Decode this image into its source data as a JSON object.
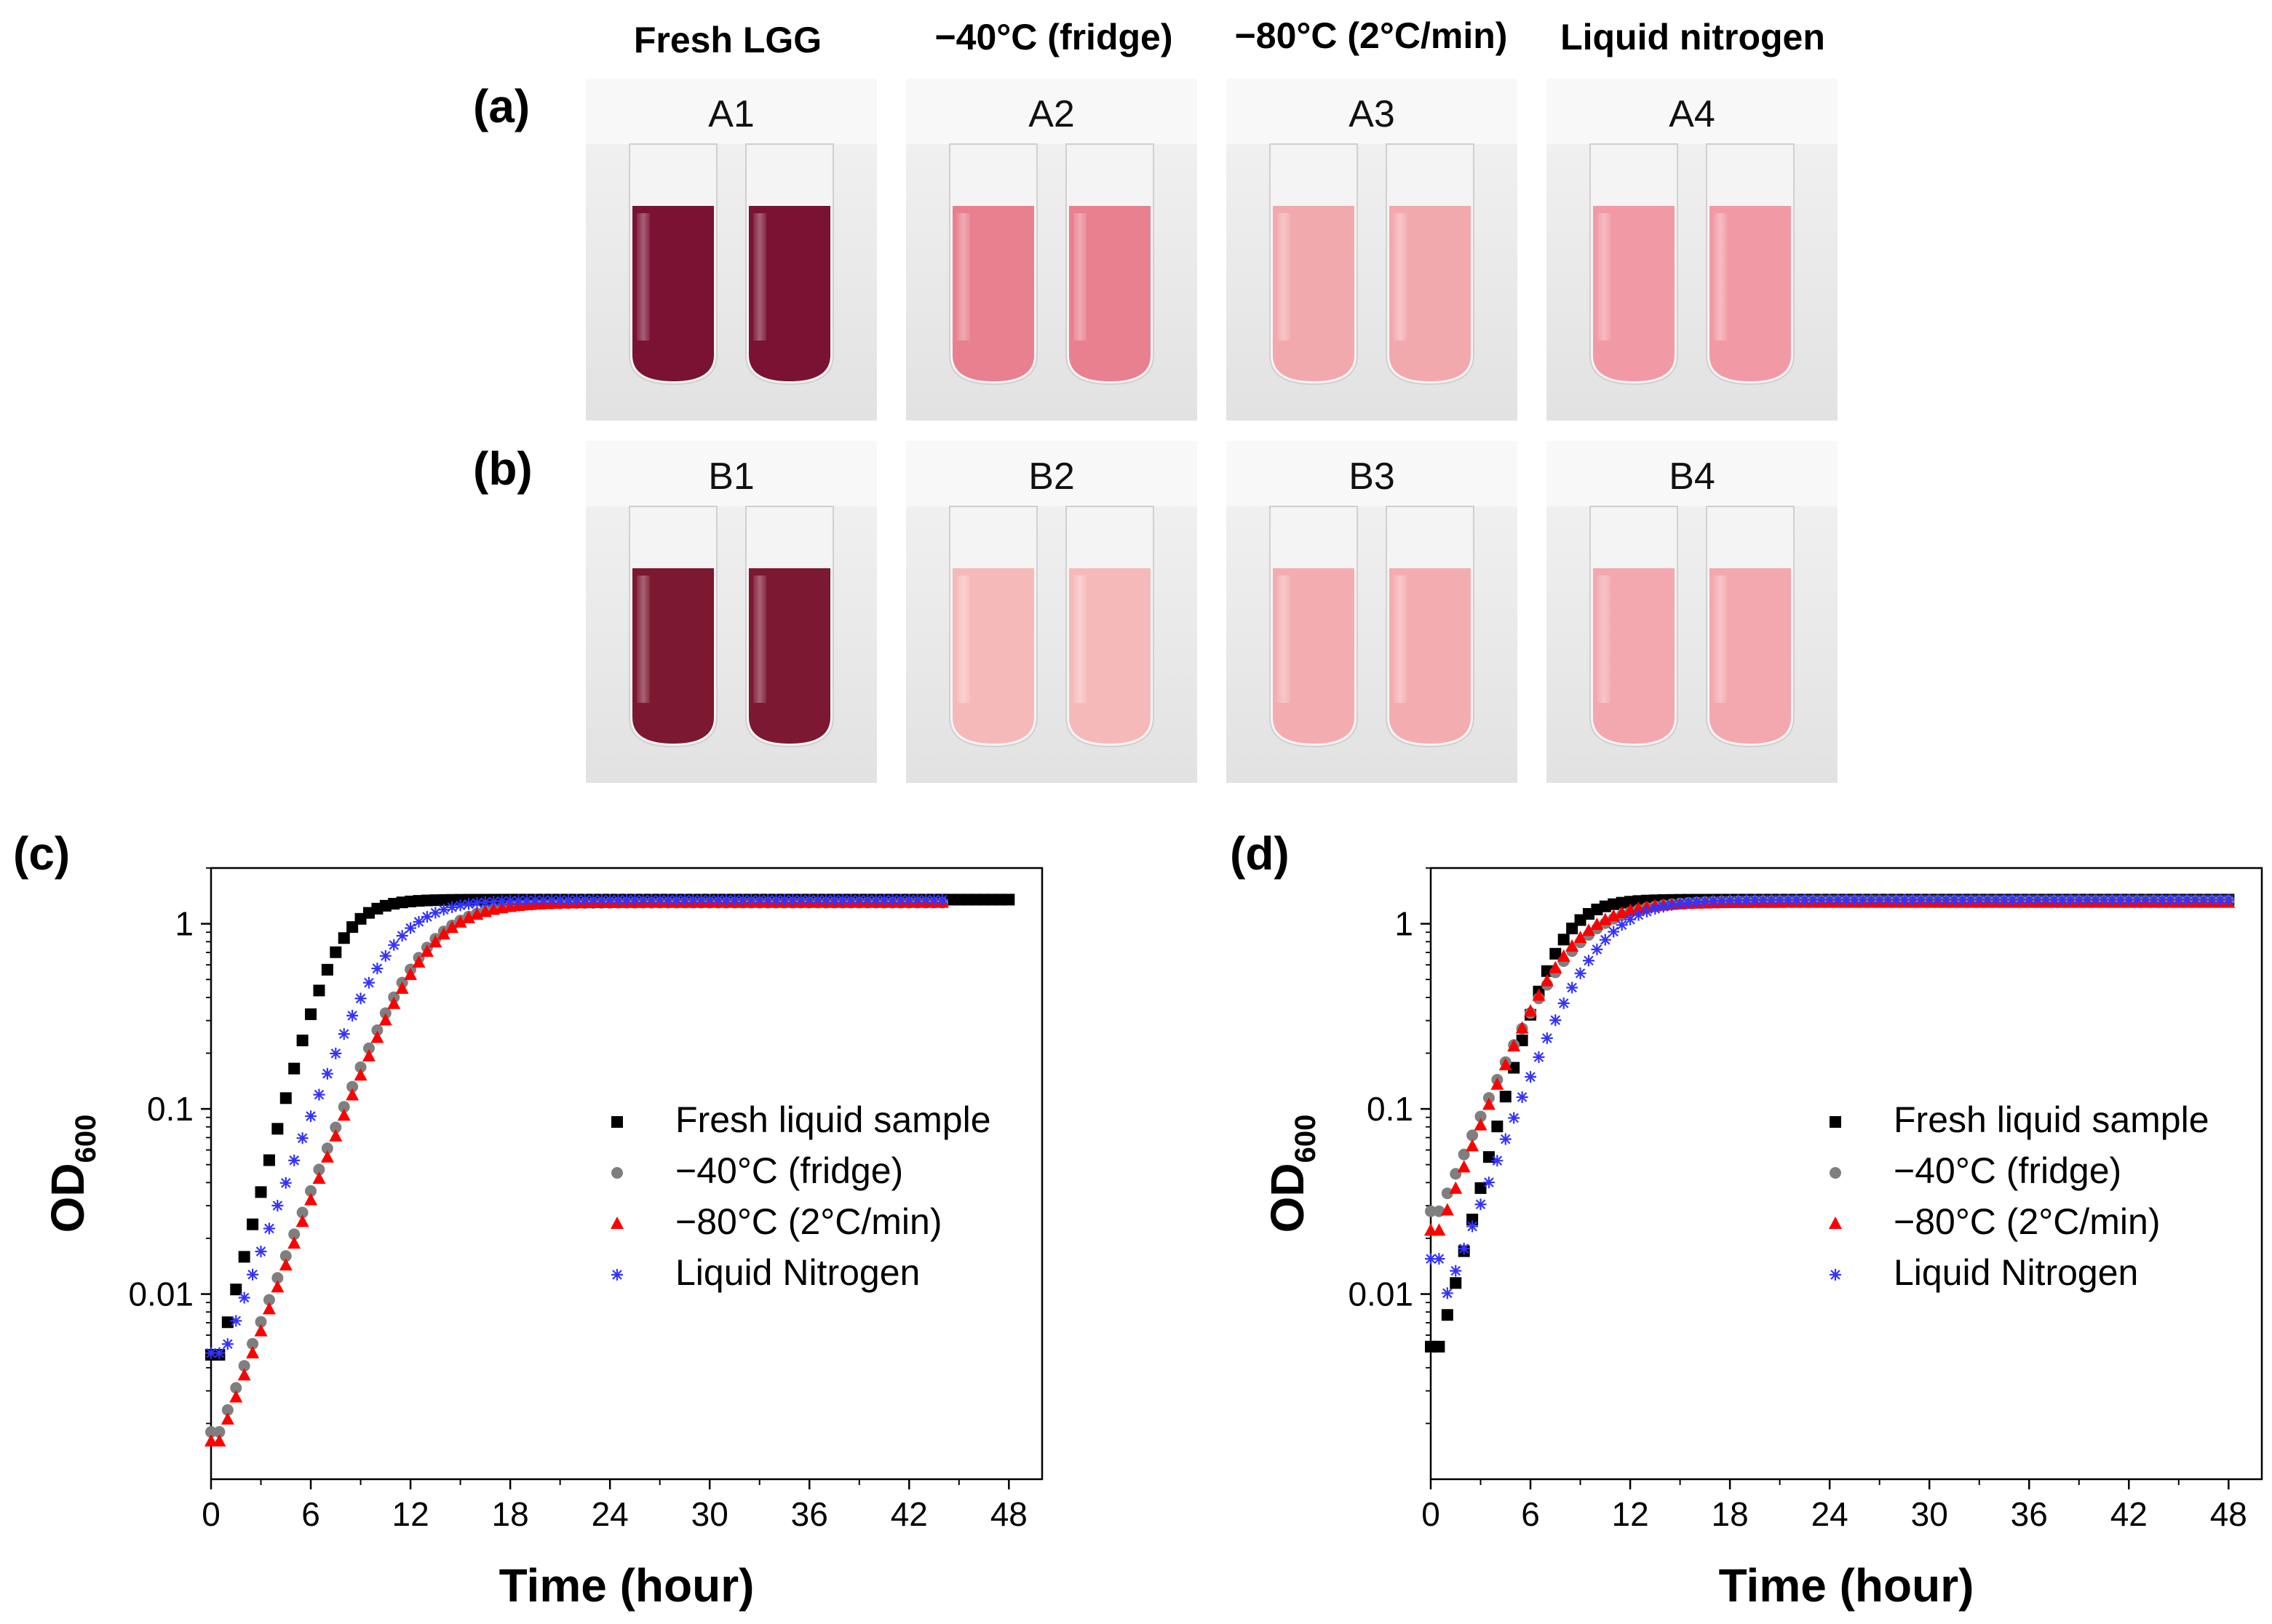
{
  "photo_panel": {
    "column_headers": [
      "Fresh LGG",
      "−40°C (fridge)",
      "−80°C (2°C/min)",
      "Liquid nitrogen"
    ],
    "rows": [
      {
        "letter": "(a)",
        "tubes": [
          {
            "label": "A1",
            "color": "#7a1234"
          },
          {
            "label": "A2",
            "color": "#e8808f"
          },
          {
            "label": "A3",
            "color": "#f2a9ad"
          },
          {
            "label": "A4",
            "color": "#f19aa5"
          }
        ]
      },
      {
        "letter": "(b)",
        "tubes": [
          {
            "label": "B1",
            "color": "#7c1830"
          },
          {
            "label": "B2",
            "color": "#f6b9b9"
          },
          {
            "label": "B3",
            "color": "#f3adb0"
          },
          {
            "label": "B4",
            "color": "#f2a8ae"
          }
        ]
      }
    ]
  },
  "colors": {
    "fresh": "#000000",
    "fridge": "#7f7f7f",
    "slow": "#ff0000",
    "ln2": "#3333ff"
  },
  "chart_data": [
    {
      "type": "scatter",
      "panel": "(c)",
      "title": "",
      "xlabel": "Time (hour)",
      "ylabel": "OD600",
      "ylabel_main": "OD",
      "ylabel_sub": "600",
      "x_scale": "linear",
      "y_scale": "log",
      "xlim": [
        0,
        50
      ],
      "ylim": [
        0.001,
        2
      ],
      "xticks": [
        0,
        6,
        12,
        18,
        24,
        30,
        36,
        42,
        48
      ],
      "yticks": [
        {
          "value": 0.01,
          "label": "0.01"
        },
        {
          "value": 0.1,
          "label": "0.1"
        },
        {
          "value": 1,
          "label": "1"
        }
      ],
      "legend_position": "center-right",
      "series": [
        {
          "name": "Fresh liquid sample",
          "marker": "square",
          "color_key": "fresh",
          "lag": 0.5,
          "y0": 0.0047,
          "rate": 0.82,
          "ymax": 1.35,
          "end": 48
        },
        {
          "name": "−40°C (fridge)",
          "marker": "circle",
          "color_key": "fridge",
          "lag": 0.5,
          "y0": 0.0018,
          "first": 0.0018,
          "rate": 0.55,
          "ymax": 1.3,
          "end": 44
        },
        {
          "name": "−80°C (2°C/min)",
          "marker": "triangle",
          "color_key": "slow",
          "lag": 0.5,
          "y0": 0.0016,
          "first": 0.0016,
          "rate": 0.55,
          "ymax": 1.3,
          "end": 44
        },
        {
          "name": "Liquid Nitrogen",
          "marker": "star",
          "color_key": "ln2",
          "lag": 0.8,
          "y0": 0.0048,
          "rate": 0.58,
          "ymax": 1.35,
          "end": 44
        }
      ]
    },
    {
      "type": "scatter",
      "panel": "(d)",
      "title": "",
      "xlabel": "Time (hour)",
      "ylabel": "OD600",
      "ylabel_main": "OD",
      "ylabel_sub": "600",
      "x_scale": "linear",
      "y_scale": "log",
      "xlim": [
        0,
        50
      ],
      "ylim": [
        0.001,
        2
      ],
      "xticks": [
        0,
        6,
        12,
        18,
        24,
        30,
        36,
        42,
        48
      ],
      "yticks": [
        {
          "value": 0.01,
          "label": "0.01"
        },
        {
          "value": 0.1,
          "label": "0.1"
        },
        {
          "value": 1,
          "label": "1"
        }
      ],
      "legend_position": "center-right",
      "series": [
        {
          "name": "Fresh liquid sample",
          "marker": "square",
          "color_key": "fresh",
          "lag": 0.5,
          "y0": 0.0052,
          "rate": 0.8,
          "ymax": 1.35,
          "end": 48
        },
        {
          "name": "−40°C (fridge)",
          "marker": "circle",
          "color_key": "fridge",
          "lag": 0.5,
          "y0": 0.028,
          "rate": 0.5,
          "ymax": 1.33,
          "end": 48
        },
        {
          "name": "−80°C (2°C/min)",
          "marker": "triangle",
          "color_key": "slow",
          "lag": 0.5,
          "y0": 0.022,
          "first": 0.022,
          "rate": 0.55,
          "ymax": 1.3,
          "end": 48
        },
        {
          "name": "Liquid Nitrogen",
          "marker": "star",
          "color_key": "ln2",
          "lag": 0.5,
          "y0": 0.0077,
          "first": 0.0155,
          "rate": 0.56,
          "ymax": 1.35,
          "end": 48
        }
      ]
    }
  ]
}
